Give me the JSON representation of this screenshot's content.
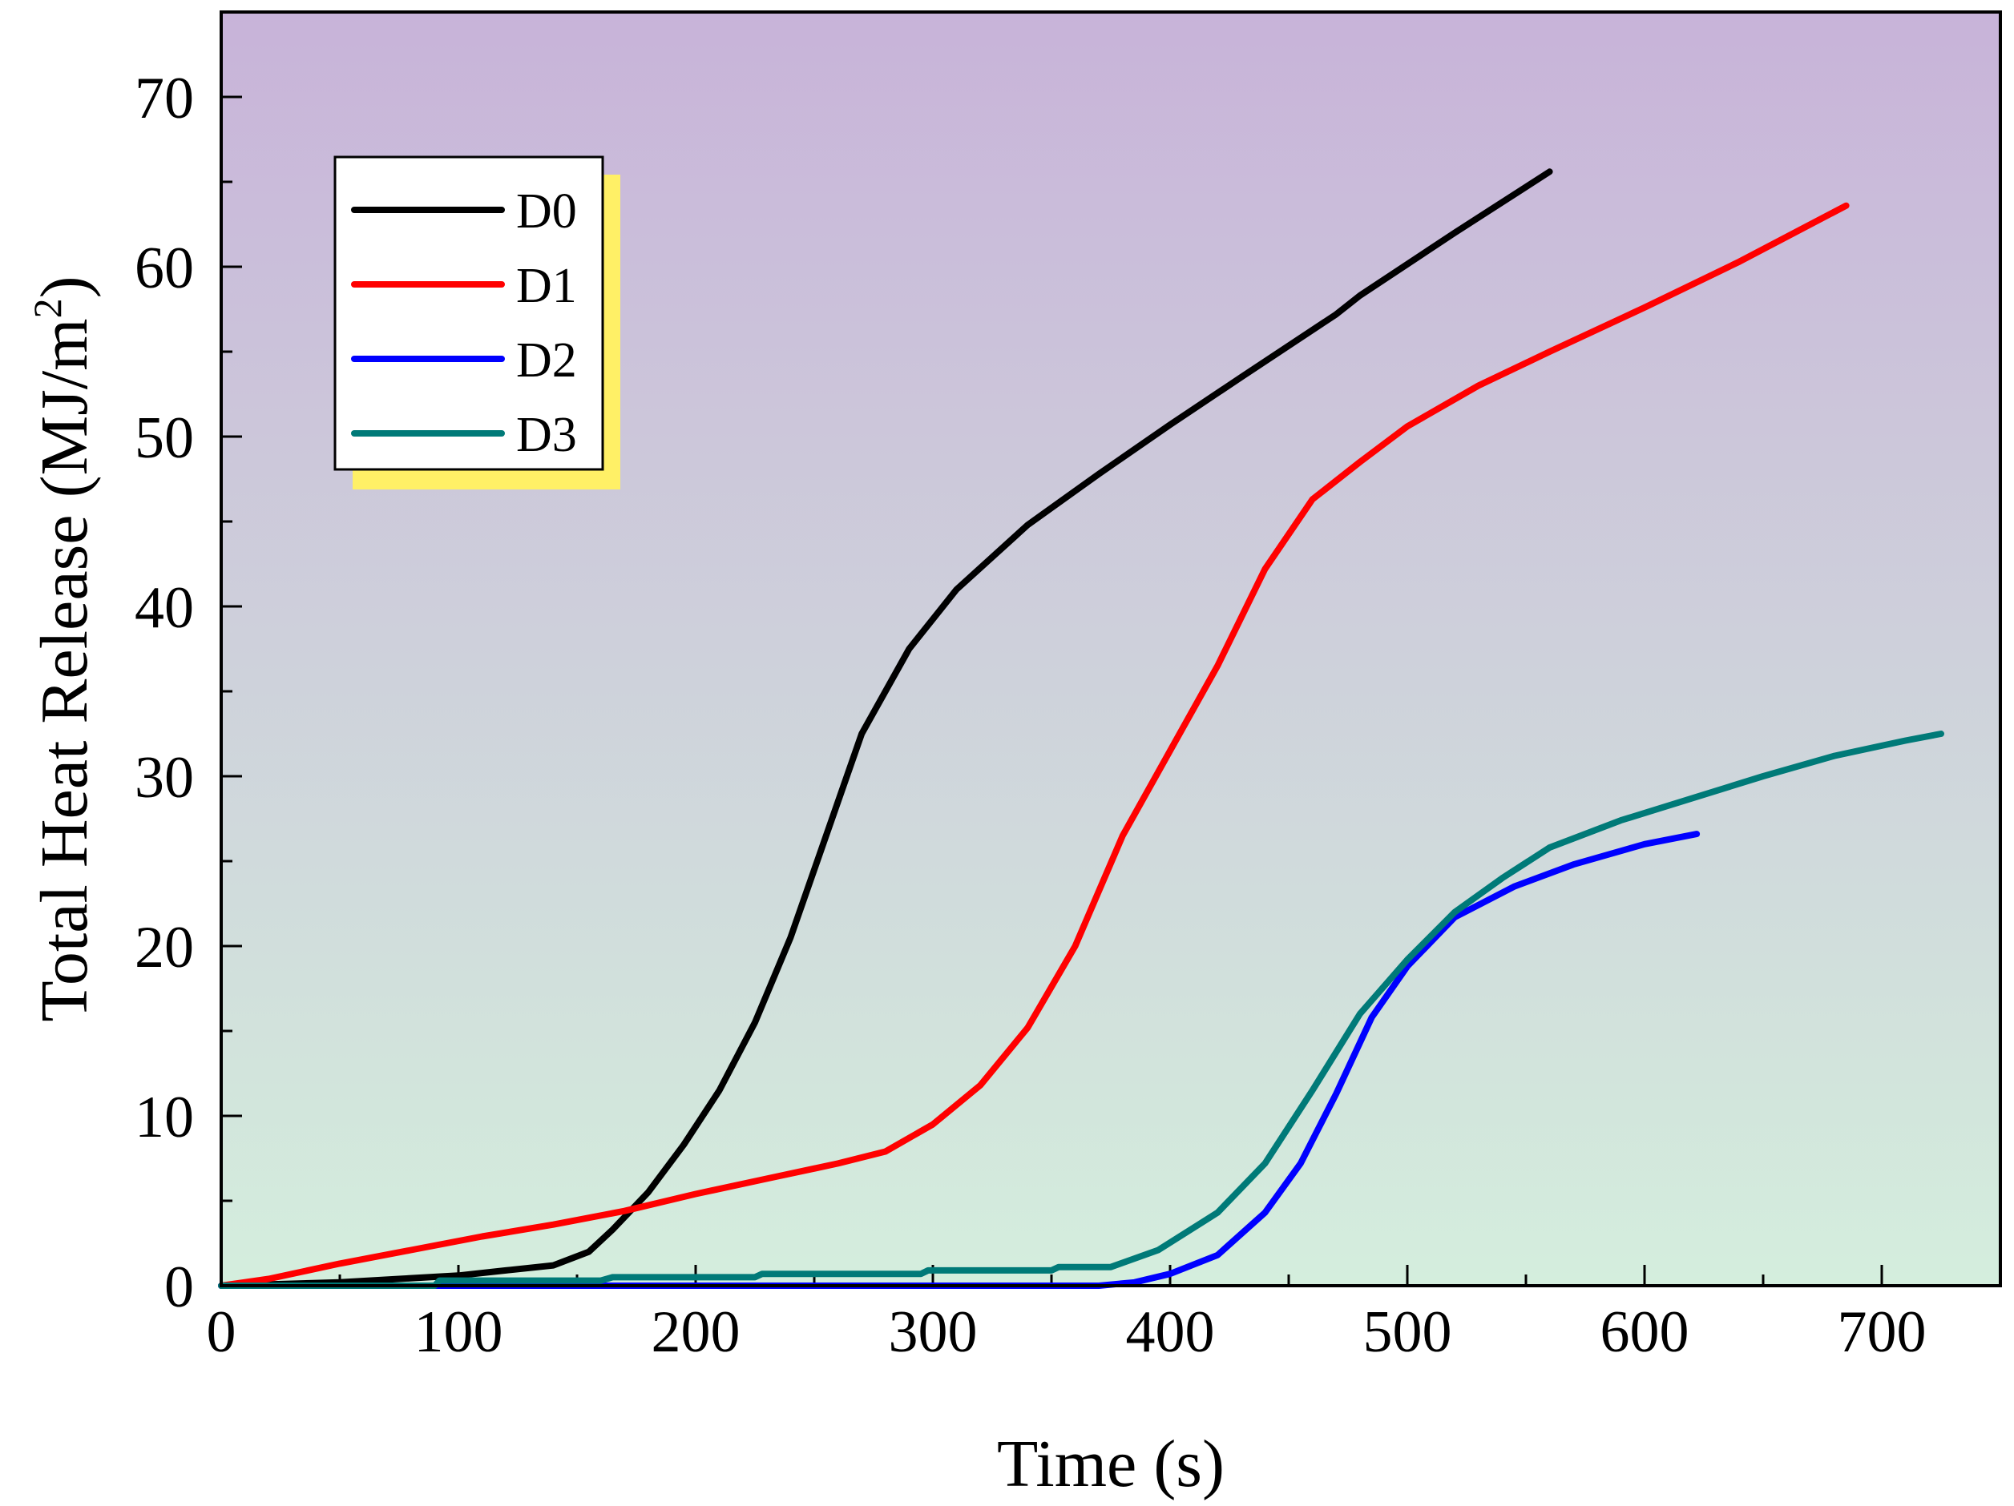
{
  "chart_data": {
    "type": "line",
    "title": "",
    "xlabel": "Time (s)",
    "ylabel": "Total Heat Release (MJ/m",
    "ylabel_superscript": "2",
    "ylabel_suffix": ")",
    "xlim": [
      0,
      750
    ],
    "ylim": [
      0,
      75
    ],
    "x_ticks": [
      0,
      100,
      200,
      300,
      400,
      500,
      600,
      700
    ],
    "y_ticks": [
      0,
      10,
      20,
      30,
      40,
      50,
      60,
      70
    ],
    "x_tick_labels": [
      "0",
      "100",
      "200",
      "300",
      "400",
      "500",
      "600",
      "700"
    ],
    "y_tick_labels": [
      "0",
      "10",
      "20",
      "30",
      "40",
      "50",
      "60",
      "70"
    ],
    "legend_position": "top-left",
    "background_gradient": {
      "top": "#C8B3D9",
      "bottom": "#D4EEDD"
    },
    "legend_shadow_color": "#FFF066",
    "series": [
      {
        "name": "D0",
        "color": "#000000",
        "points": [
          [
            0,
            0
          ],
          [
            50,
            0.2
          ],
          [
            75,
            0.4
          ],
          [
            100,
            0.6
          ],
          [
            120,
            0.9
          ],
          [
            140,
            1.2
          ],
          [
            155,
            2
          ],
          [
            165,
            3.3
          ],
          [
            180,
            5.5
          ],
          [
            195,
            8.3
          ],
          [
            210,
            11.5
          ],
          [
            225,
            15.5
          ],
          [
            240,
            20.5
          ],
          [
            255,
            26.5
          ],
          [
            270,
            32.5
          ],
          [
            290,
            37.5
          ],
          [
            310,
            41
          ],
          [
            340,
            44.8
          ],
          [
            370,
            47.8
          ],
          [
            400,
            50.7
          ],
          [
            430,
            53.5
          ],
          [
            470,
            57.2
          ],
          [
            480,
            58.3
          ],
          [
            520,
            62
          ],
          [
            560,
            65.6
          ]
        ]
      },
      {
        "name": "D1",
        "color": "#FF0000",
        "points": [
          [
            0,
            0
          ],
          [
            20,
            0.4
          ],
          [
            50,
            1.3
          ],
          [
            80,
            2.1
          ],
          [
            110,
            2.9
          ],
          [
            140,
            3.6
          ],
          [
            170,
            4.4
          ],
          [
            200,
            5.4
          ],
          [
            230,
            6.3
          ],
          [
            260,
            7.2
          ],
          [
            280,
            7.9
          ],
          [
            300,
            9.5
          ],
          [
            320,
            11.8
          ],
          [
            340,
            15.2
          ],
          [
            360,
            20
          ],
          [
            380,
            26.5
          ],
          [
            400,
            31.5
          ],
          [
            420,
            36.5
          ],
          [
            440,
            42.2
          ],
          [
            460,
            46.3
          ],
          [
            480,
            48.5
          ],
          [
            500,
            50.6
          ],
          [
            530,
            53
          ],
          [
            560,
            55
          ],
          [
            600,
            57.6
          ],
          [
            640,
            60.3
          ],
          [
            685,
            63.6
          ]
        ]
      },
      {
        "name": "D2",
        "color": "#0000FF",
        "points": [
          [
            0,
            0
          ],
          [
            370,
            0
          ],
          [
            385,
            0.2
          ],
          [
            400,
            0.7
          ],
          [
            420,
            1.8
          ],
          [
            440,
            4.3
          ],
          [
            455,
            7.2
          ],
          [
            470,
            11.3
          ],
          [
            485,
            15.8
          ],
          [
            500,
            18.8
          ],
          [
            520,
            21.7
          ],
          [
            545,
            23.5
          ],
          [
            570,
            24.8
          ],
          [
            600,
            26
          ],
          [
            622,
            26.6
          ]
        ]
      },
      {
        "name": "D3",
        "color": "#007A78",
        "points": [
          [
            0,
            0
          ],
          [
            90,
            0
          ],
          [
            92,
            0.3
          ],
          [
            160,
            0.3
          ],
          [
            165,
            0.5
          ],
          [
            225,
            0.5
          ],
          [
            228,
            0.7
          ],
          [
            295,
            0.7
          ],
          [
            298,
            0.9
          ],
          [
            350,
            0.9
          ],
          [
            353,
            1.1
          ],
          [
            375,
            1.1
          ],
          [
            395,
            2.1
          ],
          [
            420,
            4.3
          ],
          [
            440,
            7.2
          ],
          [
            460,
            11.5
          ],
          [
            480,
            16
          ],
          [
            500,
            19.2
          ],
          [
            520,
            22
          ],
          [
            540,
            24
          ],
          [
            560,
            25.8
          ],
          [
            590,
            27.4
          ],
          [
            620,
            28.7
          ],
          [
            650,
            30
          ],
          [
            680,
            31.2
          ],
          [
            710,
            32.1
          ],
          [
            725,
            32.5
          ]
        ]
      }
    ]
  }
}
